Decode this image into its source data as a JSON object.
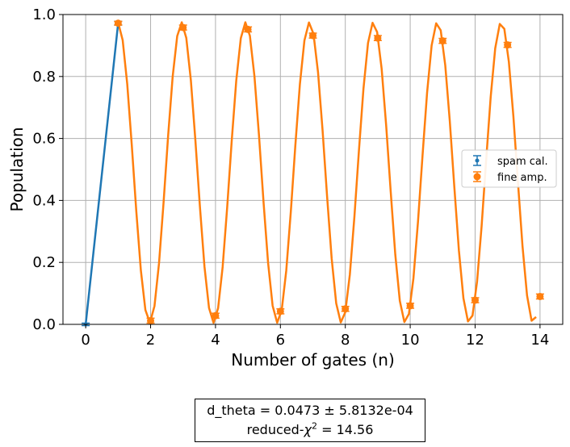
{
  "chart_data": {
    "type": "scatter",
    "xlabel": "Number of gates (n)",
    "ylabel": "Population",
    "xlim": [
      -0.7,
      14.7
    ],
    "ylim": [
      0.0,
      1.0
    ],
    "xticks": [
      "0",
      "2",
      "4",
      "6",
      "8",
      "10",
      "12",
      "14"
    ],
    "yticks": [
      "0.0",
      "0.2",
      "0.4",
      "0.6",
      "0.8",
      "1.0"
    ],
    "grid": true,
    "legend_position": "center-right",
    "series": [
      {
        "name": "spam cal.",
        "color": "#1f77b4",
        "marker": "errorbar-point",
        "x": [
          0,
          1
        ],
        "y": [
          0.0,
          0.972
        ],
        "yerr": [
          0.004,
          0.006
        ]
      },
      {
        "name": "fine amp.",
        "color": "#ff7f0e",
        "marker": "circle",
        "x": [
          1,
          2,
          3,
          4,
          5,
          6,
          7,
          8,
          9,
          10,
          11,
          12,
          13,
          14
        ],
        "y": [
          0.972,
          0.012,
          0.958,
          0.028,
          0.952,
          0.042,
          0.932,
          0.05,
          0.924,
          0.06,
          0.915,
          0.078,
          0.902,
          0.09
        ],
        "yerr": [
          0.006,
          0.008,
          0.008,
          0.008,
          0.008,
          0.008,
          0.008,
          0.008,
          0.008,
          0.008,
          0.008,
          0.008,
          0.008,
          0.008
        ]
      }
    ],
    "fit": {
      "color": "#ff7f0e",
      "model": "0.5*(1 - cos(pi*x + d_theta*x))",
      "amp": 0.485,
      "offset": 0.49,
      "freq_rad_per_gate": 3.1889
    }
  },
  "fit_box": {
    "line1": "d_theta =   0.0473 ±  5.8132e-04",
    "line2_prefix": "reduced-",
    "line2_chi": "χ",
    "line2_sup": "2",
    "line2_suffix": " =  14.56"
  }
}
